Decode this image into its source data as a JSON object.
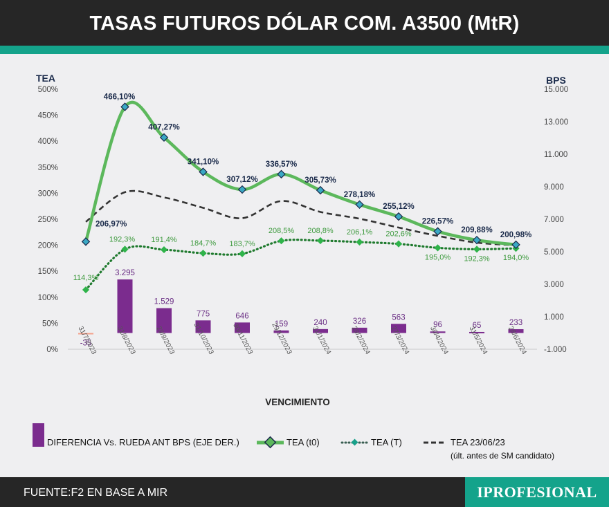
{
  "header": {
    "title": "TASAS FUTUROS DÓLAR COM. A3500 (MtR)"
  },
  "footer": {
    "source": "FUENTE:F2 EN BASE A MIR",
    "brand": "IPROFESIONAL"
  },
  "colors": {
    "header": "#262626",
    "teal": "#14a38b",
    "plot_bg": "#efeff1",
    "tea_t0": "#5cb85c",
    "tea_t": "#1f7a2e",
    "bars": "#7b2c8e",
    "bars_negative": "#f4a08a",
    "dashed": "#333333",
    "axis_text": "#1a2a4a"
  },
  "chart_data": {
    "type": "bar",
    "xlabel": "VENCIMIENTO",
    "categories": [
      "31/7/2023",
      "31/8/2023",
      "29/9/2023",
      "31/10/2023",
      "30/11/2023",
      "29/12/2023",
      "31/1/2024",
      "29/2/2024",
      "27/3/2024",
      "30/4/2024",
      "31/5/2024",
      "28/6/2024"
    ],
    "left_axis": {
      "label": "TEA",
      "ylim": [
        0,
        500
      ],
      "ticks": [
        "0%",
        "50%",
        "100%",
        "150%",
        "200%",
        "250%",
        "300%",
        "350%",
        "400%",
        "450%",
        "500%"
      ]
    },
    "right_axis": {
      "label": "BPS",
      "ylim": [
        -1000,
        15000
      ],
      "ticks": [
        "-1.000",
        "1.000",
        "3.000",
        "5.000",
        "7.000",
        "9.000",
        "11.000",
        "13.000",
        "15.000"
      ]
    },
    "series": [
      {
        "name": "DIFERENCIA Vs. RUEDA ANT BPS (EJE DER.)",
        "type": "bar",
        "axis": "right",
        "values": [
          -35,
          3295,
          1529,
          775,
          646,
          159,
          240,
          326,
          563,
          96,
          65,
          233
        ],
        "labels": [
          "-35",
          "3.295",
          "1.529",
          "775",
          "646",
          "159",
          "240",
          "326",
          "563",
          "96",
          "65",
          "233"
        ]
      },
      {
        "name": "TEA (t0)",
        "type": "line",
        "axis": "left",
        "values": [
          206.97,
          466.1,
          407.27,
          341.1,
          307.12,
          336.57,
          305.73,
          278.18,
          255.12,
          226.57,
          209.88,
          200.98
        ],
        "labels": [
          "206,97%",
          "466,10%",
          "407,27%",
          "341,10%",
          "307,12%",
          "336,57%",
          "305,73%",
          "278,18%",
          "255,12%",
          "226,57%",
          "209,88%",
          "200,98%"
        ]
      },
      {
        "name": "TEA (T)",
        "type": "line",
        "axis": "left",
        "values": [
          114.3,
          192.3,
          191.4,
          184.7,
          183.7,
          208.5,
          208.8,
          206.1,
          202.6,
          195.0,
          192.3,
          194.0
        ],
        "labels": [
          "114,3%",
          "192,3%",
          "191,4%",
          "184,7%",
          "183,7%",
          "208,5%",
          "208,8%",
          "206,1%",
          "202,6%",
          "195,0%",
          "192,3%",
          "194,0%"
        ]
      },
      {
        "name": "TEA 23/06/23",
        "note": "(últ. antes de SM candidato)",
        "type": "line",
        "axis": "left",
        "values": [
          245,
          302,
          292,
          272,
          252,
          285,
          264,
          251,
          234,
          218,
          205,
          200
        ]
      }
    ]
  }
}
